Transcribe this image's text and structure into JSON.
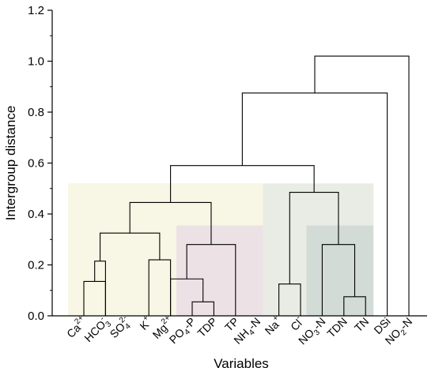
{
  "chart_data": {
    "type": "dendrogram",
    "title": "",
    "xlabel": "Variables",
    "ylabel": "Intergroup distance",
    "ylim": [
      0,
      1.2
    ],
    "y_ticks": [
      "0.0",
      "0.2",
      "0.4",
      "0.6",
      "0.8",
      "1.0",
      "1.2"
    ],
    "leaves": [
      {
        "base": "Ca",
        "sup": "2+",
        "sub": "",
        "after": ""
      },
      {
        "base": "HCO",
        "sup": "-",
        "sub": "3",
        "after": ""
      },
      {
        "base": "SO",
        "sup": "2-",
        "sub": "4",
        "after": ""
      },
      {
        "base": "K",
        "sup": "+",
        "sub": "",
        "after": ""
      },
      {
        "base": "Mg",
        "sup": "2+",
        "sub": "",
        "after": ""
      },
      {
        "base": "PO",
        "sup": "",
        "sub": "4",
        "after": "-P"
      },
      {
        "base": "TDP",
        "sup": "",
        "sub": "",
        "after": ""
      },
      {
        "base": "TP",
        "sup": "",
        "sub": "",
        "after": ""
      },
      {
        "base": "NH",
        "sup": "",
        "sub": "4",
        "after": "-N"
      },
      {
        "base": "Na",
        "sup": "+",
        "sub": "",
        "after": ""
      },
      {
        "base": "Cl",
        "sup": "-",
        "sub": "",
        "after": ""
      },
      {
        "base": "NO",
        "sup": "",
        "sub": "3",
        "after": "-N"
      },
      {
        "base": "TDN",
        "sup": "",
        "sub": "",
        "after": ""
      },
      {
        "base": "TN",
        "sup": "",
        "sub": "",
        "after": ""
      },
      {
        "base": "DSi",
        "sup": "",
        "sub": "",
        "after": ""
      },
      {
        "base": "NO",
        "sup": "",
        "sub": "2",
        "after": "-N"
      }
    ],
    "merges": [
      {
        "left": "L6",
        "right": "L7",
        "height": 0.055
      },
      {
        "left": "L13",
        "right": "L14",
        "height": 0.075
      },
      {
        "left": "L10",
        "right": "L11",
        "height": 0.125
      },
      {
        "left": "L1",
        "right": "L2",
        "height": 0.135
      },
      {
        "left": "L5",
        "right": "M0",
        "height": 0.145
      },
      {
        "left": "L2",
        "right": "M3",
        "height": 0.215
      },
      {
        "left": "L4",
        "right": "L5",
        "height": 0.22
      },
      {
        "left": "L12",
        "right": "M1",
        "height": 0.28
      },
      {
        "left": "M4",
        "right": "L8",
        "height": 0.28
      },
      {
        "left": "M5",
        "right": "M6",
        "height": 0.325
      },
      {
        "left": "M9",
        "right": "M8",
        "height": 0.445
      },
      {
        "left": "M2",
        "right": "M7",
        "height": 0.485
      },
      {
        "left": "M10",
        "right": "M11",
        "height": 0.59
      },
      {
        "left": "M12",
        "right": "L15",
        "height": 0.875
      },
      {
        "left": "M13",
        "right": "L16",
        "height": 1.02
      }
    ],
    "highlight_boxes": [
      {
        "from_leaf": 1,
        "to_leaf": 9,
        "top": 0.52,
        "color": "#f8f6e4"
      },
      {
        "from_leaf": 6,
        "to_leaf": 9,
        "top": 0.355,
        "color": "#ece2e6"
      },
      {
        "from_leaf": 10,
        "to_leaf": 14,
        "top": 0.52,
        "color": "#e9ece4"
      },
      {
        "from_leaf": 12,
        "to_leaf": 14,
        "top": 0.355,
        "color": "#d3dbd6"
      }
    ],
    "grid": false,
    "legend": "none"
  }
}
